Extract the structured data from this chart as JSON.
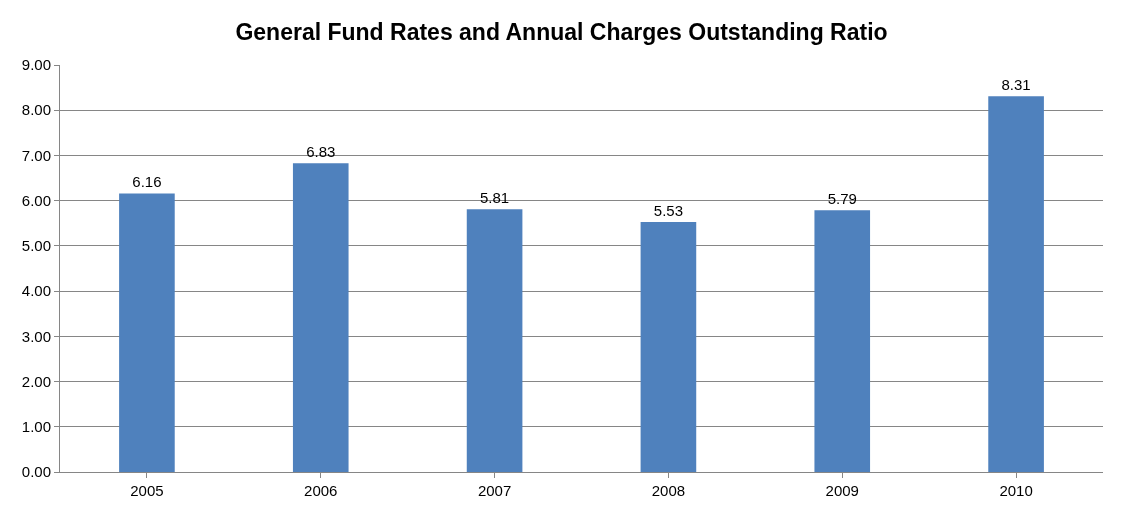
{
  "chart_data": {
    "type": "bar",
    "title": "General Fund Rates and Annual Charges Outstanding Ratio",
    "categories": [
      "2005",
      "2006",
      "2007",
      "2008",
      "2009",
      "2010"
    ],
    "values": [
      6.16,
      6.83,
      5.81,
      5.53,
      5.79,
      8.31
    ],
    "color": "#4f81bd",
    "data_labels": true,
    "ylim": [
      0,
      9
    ],
    "yticks": [
      {
        "value": 0,
        "label": "0.00"
      },
      {
        "value": 1,
        "label": "1.00"
      },
      {
        "value": 2,
        "label": "2.00"
      },
      {
        "value": 3,
        "label": "3.00"
      },
      {
        "value": 4,
        "label": "4.00"
      },
      {
        "value": 5,
        "label": "5.00"
      },
      {
        "value": 6,
        "label": "6.00"
      },
      {
        "value": 7,
        "label": "7.00"
      },
      {
        "value": 8,
        "label": "8.00"
      },
      {
        "value": 9,
        "label": "9.00"
      }
    ],
    "grid": "y"
  }
}
